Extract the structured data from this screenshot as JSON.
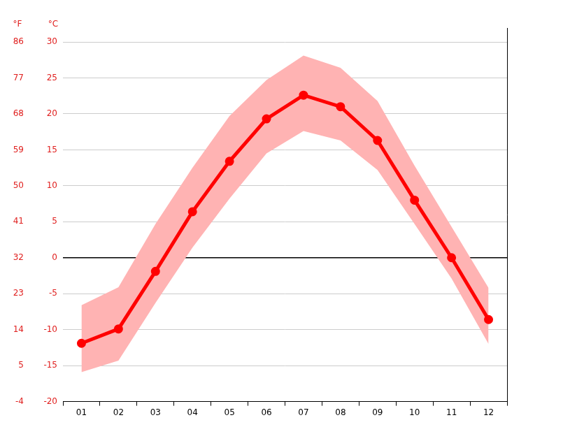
{
  "chart_data": {
    "type": "line",
    "categories": [
      "01",
      "02",
      "03",
      "04",
      "05",
      "06",
      "07",
      "08",
      "09",
      "10",
      "11",
      "12"
    ],
    "series": [
      {
        "color": "#ff0000",
        "marker": "circle",
        "line_style": "solid",
        "values": [
          -11.9,
          -9.9,
          -1.9,
          6.4,
          13.4,
          19.3,
          22.6,
          21.0,
          16.3,
          8.0,
          0.0,
          -8.6
        ]
      }
    ],
    "band": {
      "color": "#ffb3b3",
      "upper": [
        -6.6,
        -4.1,
        4.7,
        12.5,
        19.7,
        24.7,
        28.1,
        26.4,
        21.8,
        12.8,
        4.3,
        -4.2
      ],
      "lower": [
        -15.9,
        -14.3,
        -6.3,
        1.4,
        8.2,
        14.5,
        17.6,
        16.3,
        12.2,
        4.7,
        -2.9,
        -12.0
      ]
    },
    "y_label": "°C",
    "ylim": [
      -20,
      30
    ],
    "yticks": [
      -20,
      -15,
      -10,
      -5,
      0,
      5,
      10,
      15,
      20,
      25,
      30
    ],
    "y2_label": "°F",
    "y2lim": [
      -4,
      86
    ],
    "y2ticks": [
      -4,
      5,
      14,
      23,
      32,
      41,
      50,
      59,
      68,
      77,
      86
    ],
    "grid": true
  }
}
